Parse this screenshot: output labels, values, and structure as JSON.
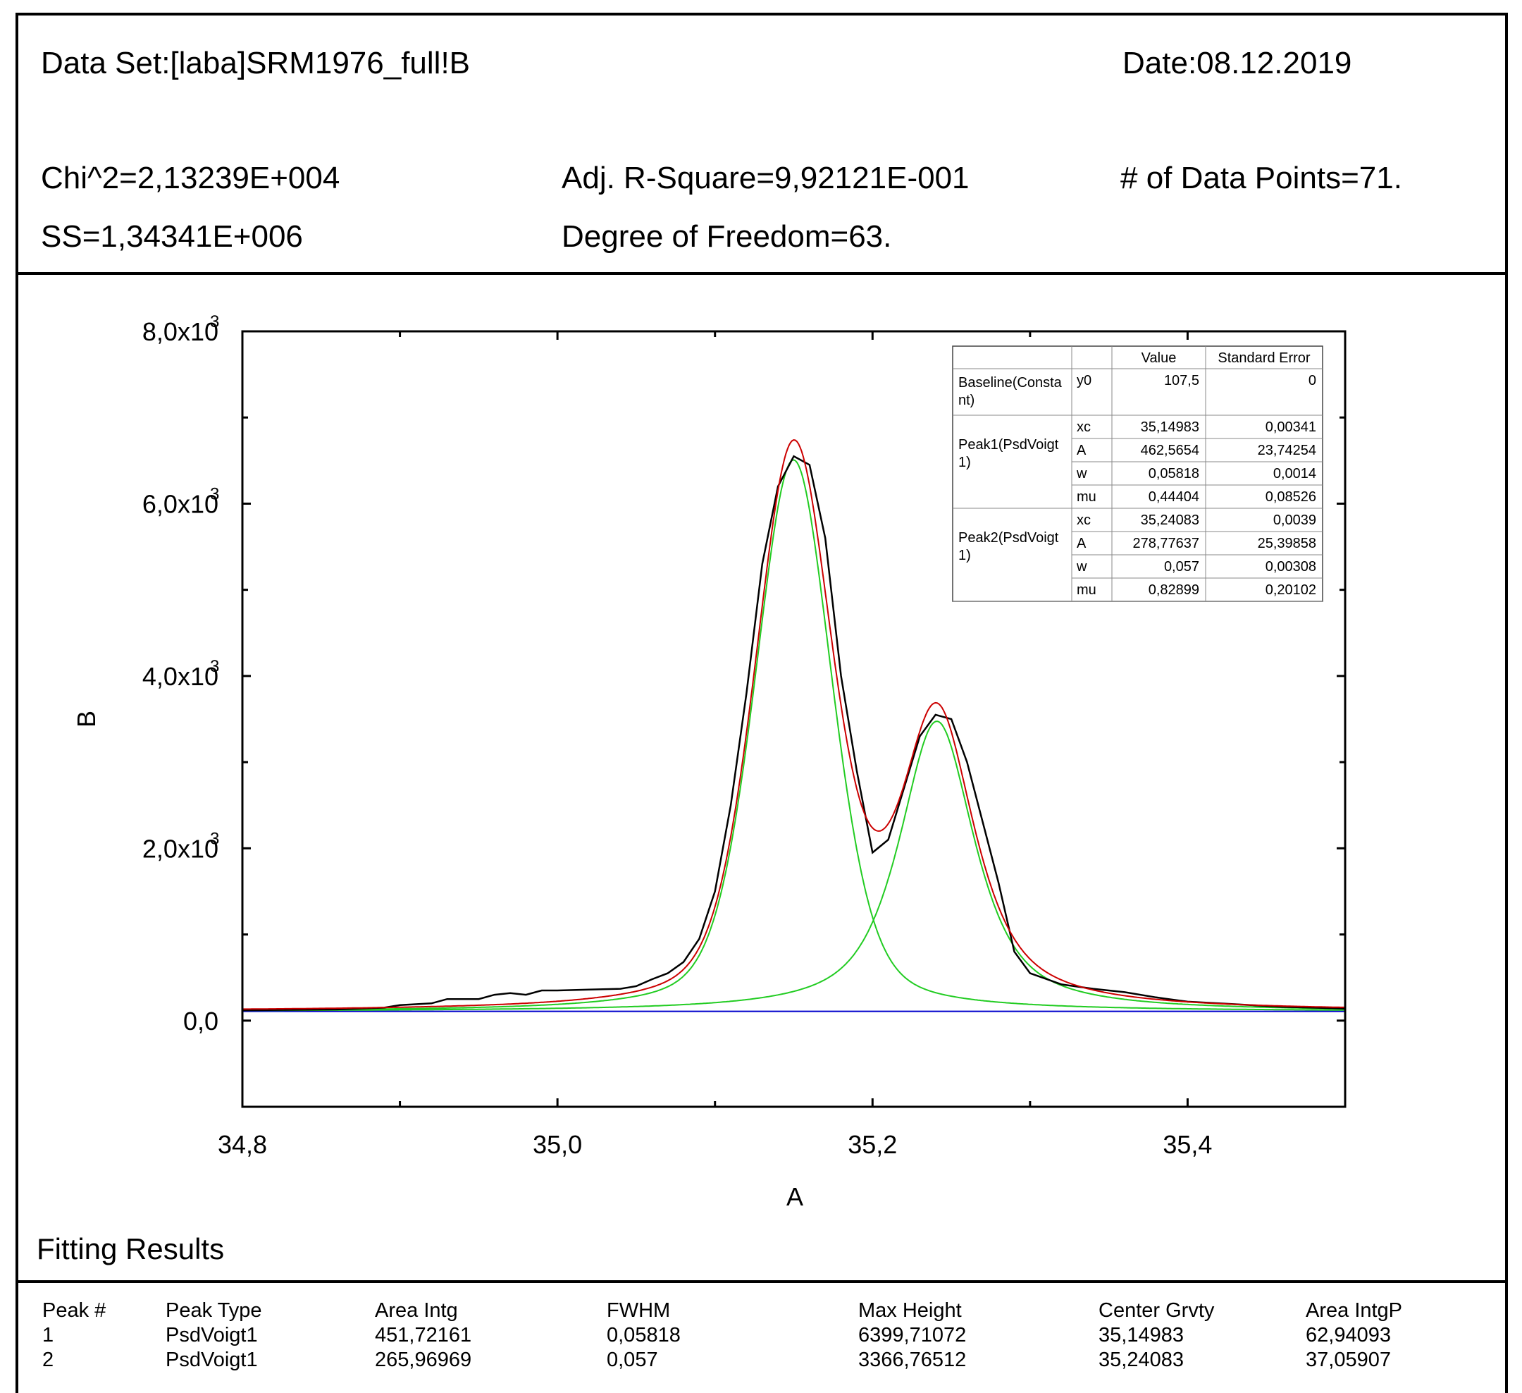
{
  "header": {
    "dataset": "Data Set:[laba]SRM1976_full!B",
    "date": "Date:08.12.2019",
    "chi2": "Chi^2=2,13239E+004",
    "adjr2": "Adj. R-Square=9,92121E-001",
    "npoints": "# of Data Points=71.",
    "ss": "SS=1,34341E+006",
    "dof": "Degree of Freedom=63."
  },
  "chart_data": {
    "type": "line",
    "xlabel": "A",
    "ylabel": "B",
    "xlim": [
      34.8,
      35.5
    ],
    "ylim": [
      -1000,
      8000
    ],
    "x_ticks": [
      {
        "v": 34.8,
        "label": "34,8"
      },
      {
        "v": 35.0,
        "label": "35,0"
      },
      {
        "v": 35.2,
        "label": "35,2"
      },
      {
        "v": 35.4,
        "label": "35,4"
      }
    ],
    "y_ticks": [
      {
        "v": 0,
        "label": "0,0",
        "exp": ""
      },
      {
        "v": 2000,
        "label": "2,0x10",
        "exp": "3"
      },
      {
        "v": 4000,
        "label": "4,0x10",
        "exp": "3"
      },
      {
        "v": 6000,
        "label": "6,0x10",
        "exp": "3"
      },
      {
        "v": 8000,
        "label": "8,0x10",
        "exp": "3"
      }
    ],
    "baseline": 107.5,
    "peaks": [
      {
        "xc": 35.14983,
        "A": 462.5654,
        "w": 0.05818,
        "mu": 0.44404
      },
      {
        "xc": 35.24083,
        "A": 278.77637,
        "w": 0.057,
        "mu": 0.82899
      }
    ],
    "series": [
      {
        "type": "data",
        "color": "#000000",
        "x": [
          34.8,
          34.86,
          34.89,
          34.9,
          34.92,
          34.93,
          34.95,
          34.96,
          34.97,
          34.98,
          34.99,
          35.0,
          35.02,
          35.04,
          35.05,
          35.06,
          35.07,
          35.08,
          35.09,
          35.1,
          35.11,
          35.12,
          35.13,
          35.14,
          35.15,
          35.16,
          35.17,
          35.18,
          35.19,
          35.2,
          35.21,
          35.22,
          35.23,
          35.24,
          35.25,
          35.26,
          35.27,
          35.28,
          35.29,
          35.3,
          35.32,
          35.34,
          35.36,
          35.38,
          35.4,
          35.42,
          35.44,
          35.46,
          35.48,
          35.5
        ],
        "y": [
          120,
          130,
          150,
          180,
          200,
          250,
          250,
          300,
          320,
          300,
          350,
          350,
          360,
          370,
          400,
          480,
          550,
          680,
          950,
          1500,
          2500,
          3800,
          5300,
          6200,
          6550,
          6450,
          5600,
          4000,
          2900,
          1950,
          2100,
          2700,
          3300,
          3550,
          3500,
          3000,
          2300,
          1600,
          800,
          550,
          420,
          370,
          330,
          270,
          220,
          200,
          180,
          160,
          150,
          140
        ]
      },
      {
        "type": "fit",
        "color": "#cc0000"
      },
      {
        "type": "peak",
        "color": "#22cc22"
      },
      {
        "type": "baseline",
        "color": "#0000cc"
      }
    ]
  },
  "params": {
    "headers": [
      "",
      "",
      "Value",
      "Standard Error"
    ],
    "groups": [
      {
        "name": [
          "Baseline(Consta",
          "nt)"
        ],
        "rows": [
          [
            "y0",
            "107,5",
            "0"
          ]
        ]
      },
      {
        "name": [
          "Peak1(PsdVoigt",
          "1)"
        ],
        "rows": [
          [
            "xc",
            "35,14983",
            "0,00341"
          ],
          [
            "A",
            "462,5654",
            "23,74254"
          ],
          [
            "w",
            "0,05818",
            "0,0014"
          ],
          [
            "mu",
            "0,44404",
            "0,08526"
          ]
        ]
      },
      {
        "name": [
          "Peak2(PsdVoigt",
          "1)"
        ],
        "rows": [
          [
            "xc",
            "35,24083",
            "0,0039"
          ],
          [
            "A",
            "278,77637",
            "25,39858"
          ],
          [
            "w",
            "0,057",
            "0,00308"
          ],
          [
            "mu",
            "0,82899",
            "0,20102"
          ]
        ]
      }
    ]
  },
  "results": {
    "title": "Fitting Results",
    "columns": [
      "Peak #",
      "Peak Type",
      "Area Intg",
      "FWHM",
      "Max Height",
      "Center Grvty",
      "Area IntgP"
    ],
    "rows": [
      [
        "1",
        "PsdVoigt1",
        "451,72161",
        "0,05818",
        "6399,71072",
        "35,14983",
        "62,94093"
      ],
      [
        "2",
        "PsdVoigt1",
        "265,96969",
        "0,057",
        "3366,76512",
        "35,24083",
        "37,05907"
      ]
    ]
  }
}
